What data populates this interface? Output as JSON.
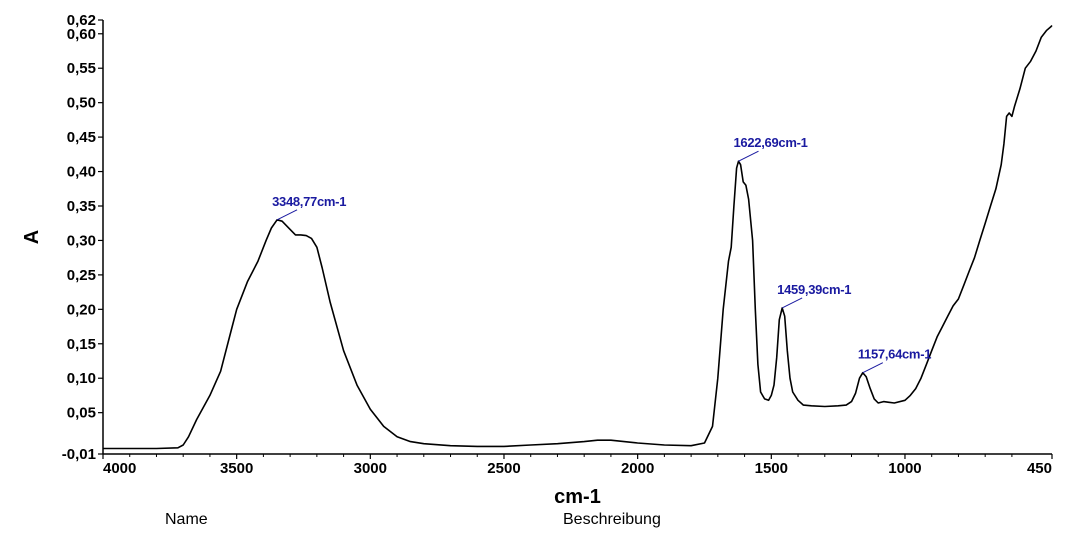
{
  "chart_data": {
    "type": "line",
    "xlabel": "cm-1",
    "ylabel": "A",
    "xlim": [
      4000,
      450
    ],
    "ylim": [
      -0.01,
      0.62
    ],
    "x_reversed": true,
    "grid": false,
    "xticks": [
      "4000",
      "3500",
      "3000",
      "2500",
      "2000",
      "1500",
      "1000",
      "450"
    ],
    "xtick_values": [
      4000,
      3500,
      3000,
      2500,
      2000,
      1500,
      1000,
      450
    ],
    "yticks": [
      "-0,01",
      "0,05",
      "0,10",
      "0,15",
      "0,20",
      "0,25",
      "0,30",
      "0,35",
      "0,40",
      "0,45",
      "0,50",
      "0,55",
      "0,60",
      "0,62"
    ],
    "ytick_values": [
      -0.01,
      0.05,
      0.1,
      0.15,
      0.2,
      0.25,
      0.3,
      0.35,
      0.4,
      0.45,
      0.5,
      0.55,
      0.6,
      0.62
    ],
    "series": [
      {
        "color": "#000000",
        "points": [
          [
            4000,
            -0.002
          ],
          [
            3800,
            -0.002
          ],
          [
            3720,
            -0.001
          ],
          [
            3700,
            0.003
          ],
          [
            3680,
            0.015
          ],
          [
            3650,
            0.04
          ],
          [
            3600,
            0.075
          ],
          [
            3560,
            0.11
          ],
          [
            3520,
            0.17
          ],
          [
            3500,
            0.2
          ],
          [
            3460,
            0.24
          ],
          [
            3420,
            0.27
          ],
          [
            3390,
            0.3
          ],
          [
            3370,
            0.318
          ],
          [
            3348.77,
            0.33
          ],
          [
            3330,
            0.328
          ],
          [
            3300,
            0.316
          ],
          [
            3280,
            0.308
          ],
          [
            3260,
            0.308
          ],
          [
            3240,
            0.307
          ],
          [
            3220,
            0.303
          ],
          [
            3200,
            0.29
          ],
          [
            3180,
            0.26
          ],
          [
            3150,
            0.21
          ],
          [
            3100,
            0.14
          ],
          [
            3050,
            0.09
          ],
          [
            3000,
            0.055
          ],
          [
            2950,
            0.03
          ],
          [
            2900,
            0.015
          ],
          [
            2850,
            0.008
          ],
          [
            2800,
            0.005
          ],
          [
            2700,
            0.002
          ],
          [
            2600,
            0.001
          ],
          [
            2500,
            0.001
          ],
          [
            2400,
            0.003
          ],
          [
            2300,
            0.005
          ],
          [
            2200,
            0.008
          ],
          [
            2150,
            0.01
          ],
          [
            2100,
            0.01
          ],
          [
            2000,
            0.006
          ],
          [
            1900,
            0.003
          ],
          [
            1800,
            0.002
          ],
          [
            1750,
            0.006
          ],
          [
            1720,
            0.03
          ],
          [
            1700,
            0.1
          ],
          [
            1680,
            0.2
          ],
          [
            1660,
            0.27
          ],
          [
            1650,
            0.29
          ],
          [
            1640,
            0.35
          ],
          [
            1630,
            0.405
          ],
          [
            1622.69,
            0.415
          ],
          [
            1615,
            0.41
          ],
          [
            1605,
            0.385
          ],
          [
            1595,
            0.38
          ],
          [
            1585,
            0.36
          ],
          [
            1570,
            0.3
          ],
          [
            1560,
            0.2
          ],
          [
            1550,
            0.12
          ],
          [
            1540,
            0.08
          ],
          [
            1525,
            0.07
          ],
          [
            1510,
            0.068
          ],
          [
            1500,
            0.075
          ],
          [
            1490,
            0.09
          ],
          [
            1480,
            0.13
          ],
          [
            1470,
            0.185
          ],
          [
            1459.39,
            0.202
          ],
          [
            1450,
            0.19
          ],
          [
            1440,
            0.14
          ],
          [
            1430,
            0.1
          ],
          [
            1420,
            0.08
          ],
          [
            1400,
            0.068
          ],
          [
            1380,
            0.061
          ],
          [
            1350,
            0.06
          ],
          [
            1300,
            0.059
          ],
          [
            1250,
            0.06
          ],
          [
            1220,
            0.061
          ],
          [
            1200,
            0.066
          ],
          [
            1185,
            0.078
          ],
          [
            1170,
            0.1
          ],
          [
            1157.64,
            0.108
          ],
          [
            1145,
            0.102
          ],
          [
            1130,
            0.085
          ],
          [
            1115,
            0.07
          ],
          [
            1100,
            0.064
          ],
          [
            1080,
            0.066
          ],
          [
            1060,
            0.065
          ],
          [
            1040,
            0.064
          ],
          [
            1000,
            0.068
          ],
          [
            980,
            0.075
          ],
          [
            960,
            0.085
          ],
          [
            940,
            0.1
          ],
          [
            920,
            0.12
          ],
          [
            900,
            0.14
          ],
          [
            880,
            0.16
          ],
          [
            860,
            0.175
          ],
          [
            840,
            0.19
          ],
          [
            820,
            0.205
          ],
          [
            800,
            0.215
          ],
          [
            780,
            0.235
          ],
          [
            760,
            0.255
          ],
          [
            740,
            0.275
          ],
          [
            720,
            0.3
          ],
          [
            700,
            0.325
          ],
          [
            680,
            0.35
          ],
          [
            660,
            0.375
          ],
          [
            640,
            0.41
          ],
          [
            630,
            0.44
          ],
          [
            620,
            0.48
          ],
          [
            610,
            0.485
          ],
          [
            600,
            0.48
          ],
          [
            590,
            0.495
          ],
          [
            570,
            0.52
          ],
          [
            550,
            0.55
          ],
          [
            530,
            0.56
          ],
          [
            510,
            0.575
          ],
          [
            490,
            0.595
          ],
          [
            470,
            0.605
          ],
          [
            455,
            0.61
          ],
          [
            450,
            0.612
          ]
        ]
      }
    ],
    "annotations": [
      {
        "text": "3348,77cm-1",
        "x": 3348.77,
        "y": 0.33
      },
      {
        "text": "1622,69cm-1",
        "x": 1622.69,
        "y": 0.415
      },
      {
        "text": "1459,39cm-1",
        "x": 1459.39,
        "y": 0.202
      },
      {
        "text": "1157,64cm-1",
        "x": 1157.64,
        "y": 0.108
      }
    ],
    "annotation_color": "#1a1aa0"
  },
  "footer": {
    "name_label": "Name",
    "description_label": "Beschreibung"
  }
}
